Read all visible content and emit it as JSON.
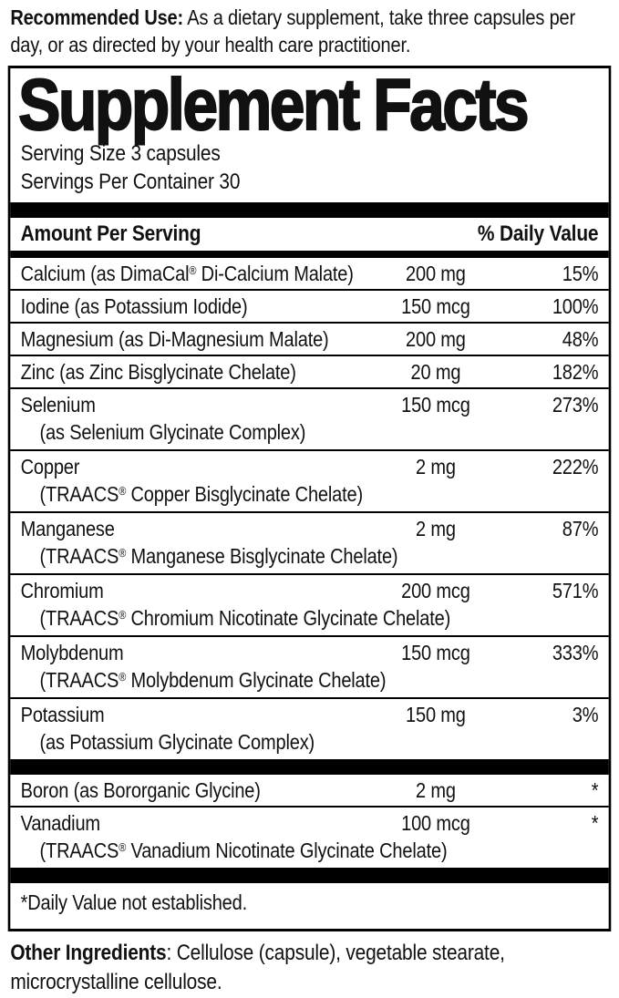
{
  "recommended_use": {
    "label": "Recommended Use:",
    "text": " As a dietary supplement, take three capsules per day, or as directed by your health care practitioner."
  },
  "supplement_facts": {
    "title": "Supplement Facts",
    "serving_size": "Serving Size 3 capsules",
    "servings_per_container": "Servings Per Container 30",
    "columns": {
      "amount": "Amount Per Serving",
      "daily_value": "% Daily Value"
    },
    "rows": [
      {
        "name": "Calcium (as DimaCal® Di-Calcium Malate)",
        "amount": "200 mg",
        "dv": "15%"
      },
      {
        "name": "Iodine (as Potassium Iodide)",
        "amount": "150 mcg",
        "dv": "100%"
      },
      {
        "name": "Magnesium (as Di-Magnesium Malate)",
        "amount": "200 mg",
        "dv": "48%"
      },
      {
        "name": "Zinc (as Zinc Bisglycinate Chelate)",
        "amount": "20 mg",
        "dv": "182%"
      },
      {
        "name": "Selenium",
        "sub": "(as Selenium Glycinate Complex)",
        "amount": "150 mcg",
        "dv": "273%"
      },
      {
        "name": "Copper",
        "sub": "(TRAACS® Copper Bisglycinate Chelate)",
        "amount": "2 mg",
        "dv": "222%"
      },
      {
        "name": "Manganese",
        "sub": "(TRAACS® Manganese Bisglycinate Chelate)",
        "amount": "2 mg",
        "dv": "87%"
      },
      {
        "name": "Chromium",
        "sub": "(TRAACS® Chromium Nicotinate Glycinate Chelate)",
        "amount": "200 mcg",
        "dv": "571%"
      },
      {
        "name": "Molybdenum",
        "sub": "(TRAACS® Molybdenum Glycinate Chelate)",
        "amount": "150 mcg",
        "dv": "333%"
      },
      {
        "name": "Potassium",
        "sub": "(as Potassium Glycinate Complex)",
        "amount": "150 mg",
        "dv": "3%"
      }
    ],
    "no_dv_rows": [
      {
        "name": "Boron (as Bororganic Glycine)",
        "amount": "2 mg",
        "dv": "*"
      },
      {
        "name": "Vanadium",
        "sub": "(TRAACS® Vanadium Nicotinate Glycinate Chelate)",
        "amount": "100 mcg",
        "dv": "*"
      }
    ],
    "footnote": "*Daily Value not established."
  },
  "other_ingredients": {
    "label": "Other Ingredients",
    "text": ": Cellulose (capsule), vegetable stearate, microcrystalline cellulose."
  },
  "colors": {
    "text": "#111111",
    "rule": "#000000",
    "background": "#ffffff"
  }
}
